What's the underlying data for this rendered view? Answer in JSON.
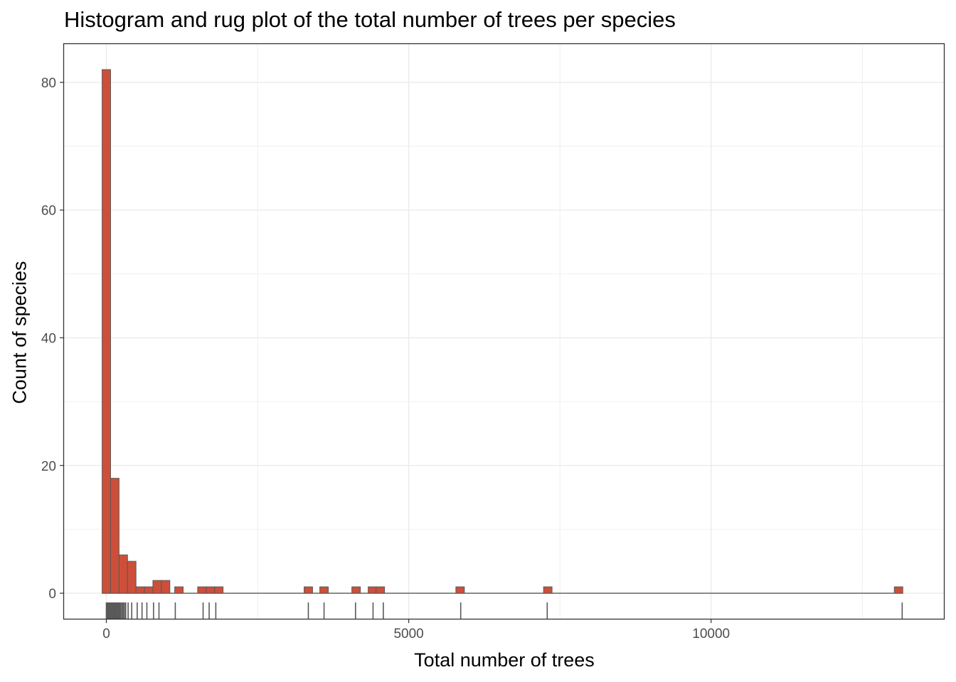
{
  "chart_data": {
    "type": "bar",
    "subtype": "histogram-with-rug",
    "title": "Histogram and rug plot of the total number of trees per species",
    "xlabel": "Total number of trees",
    "ylabel": "Count of species",
    "xlim": [
      -700,
      13850
    ],
    "ylim": [
      -4,
      86
    ],
    "x_ticks": [
      0,
      5000,
      10000
    ],
    "y_ticks": [
      0,
      20,
      40,
      60,
      80
    ],
    "grid": true,
    "bin_width": 140,
    "bins": [
      {
        "x": 0,
        "count": 82
      },
      {
        "x": 140,
        "count": 18
      },
      {
        "x": 280,
        "count": 6
      },
      {
        "x": 420,
        "count": 5
      },
      {
        "x": 560,
        "count": 1
      },
      {
        "x": 700,
        "count": 1
      },
      {
        "x": 840,
        "count": 2
      },
      {
        "x": 980,
        "count": 2
      },
      {
        "x": 1200,
        "count": 1
      },
      {
        "x": 1580,
        "count": 1
      },
      {
        "x": 1720,
        "count": 1
      },
      {
        "x": 1860,
        "count": 1
      },
      {
        "x": 3340,
        "count": 1
      },
      {
        "x": 3600,
        "count": 1
      },
      {
        "x": 4130,
        "count": 1
      },
      {
        "x": 4400,
        "count": 1
      },
      {
        "x": 4530,
        "count": 1
      },
      {
        "x": 5850,
        "count": 1
      },
      {
        "x": 7300,
        "count": 1
      },
      {
        "x": 13100,
        "count": 1
      }
    ],
    "rug": [
      0,
      15,
      30,
      45,
      60,
      75,
      90,
      105,
      120,
      135,
      150,
      165,
      180,
      195,
      210,
      225,
      240,
      260,
      280,
      300,
      320,
      360,
      420,
      510,
      590,
      670,
      780,
      870,
      1140,
      1600,
      1700,
      1810,
      3340,
      3600,
      4120,
      4410,
      4580,
      5860,
      7290,
      13160
    ],
    "colors": {
      "bar_fill": "#cd4f39",
      "bar_stroke": "#595959",
      "rug": "#595959",
      "grid": "#ebebeb",
      "panel_border": "#333333",
      "axis_text": "#4d4d4d"
    }
  }
}
